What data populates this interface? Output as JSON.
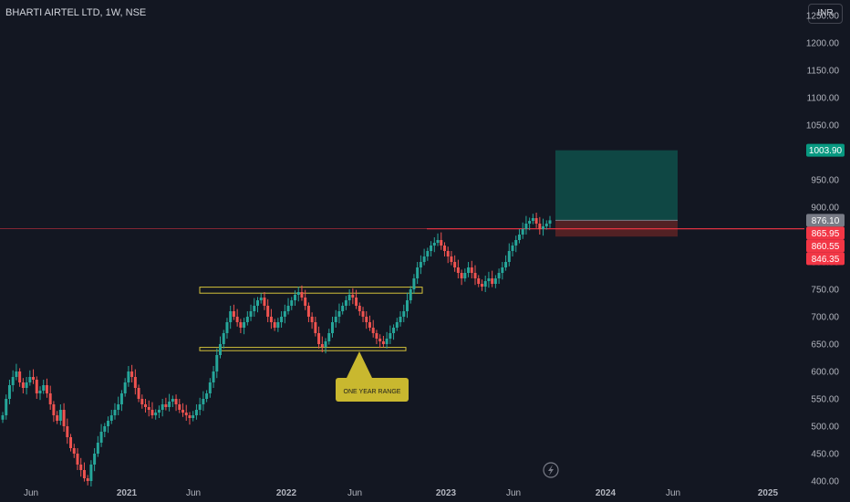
{
  "header": {
    "title": "BHARTI AIRTEL LTD, 1W, NSE",
    "currency": "INR"
  },
  "colors": {
    "background": "#131722",
    "up": "#26a69a",
    "down": "#ef5350",
    "target_zone": "#0f4a47",
    "stop_zone": "#5a2225",
    "range_box": "#d4c23a",
    "line": "#f23645"
  },
  "chart_data": {
    "type": "candlestick",
    "x_ticks": [
      "Jun",
      "2021",
      "Jun",
      "2022",
      "Jun",
      "2023",
      "Jun",
      "2024",
      "Jun",
      "2025"
    ],
    "y_ticks": [
      400,
      450,
      500,
      550,
      600,
      650,
      700,
      750,
      800,
      850,
      900,
      950,
      1000,
      1050,
      1100,
      1150,
      1200,
      1250
    ],
    "ylim": [
      385,
      1265
    ],
    "price_labels": [
      "1003.90",
      "876.10",
      "865.95",
      "860.55",
      "846.35"
    ],
    "annotation": "ONE YEAR RANGE",
    "range_levels": {
      "top_band": [
        743,
        754
      ],
      "bottom_band": [
        638,
        644
      ]
    },
    "horizontal_line": 860.55,
    "position": {
      "entry": 876.1,
      "target": 1003.9,
      "stop": 846.35
    },
    "closes": [
      520,
      550,
      575,
      590,
      600,
      580,
      570,
      580,
      590,
      585,
      560,
      565,
      575,
      560,
      540,
      520,
      510,
      530,
      500,
      480,
      460,
      450,
      430,
      420,
      405,
      400,
      430,
      450,
      470,
      490,
      500,
      510,
      520,
      530,
      540,
      560,
      580,
      600,
      590,
      570,
      550,
      540,
      535,
      530,
      520,
      525,
      530,
      540,
      535,
      545,
      550,
      540,
      530,
      525,
      520,
      515,
      520,
      530,
      540,
      550,
      560,
      580,
      600,
      630,
      650,
      670,
      690,
      710,
      700,
      690,
      680,
      690,
      700,
      710,
      720,
      730,
      735,
      720,
      700,
      690,
      680,
      690,
      700,
      710,
      720,
      730,
      740,
      745,
      735,
      720,
      700,
      690,
      670,
      650,
      645,
      655,
      670,
      690,
      700,
      710,
      720,
      730,
      740,
      735,
      720,
      710,
      700,
      690,
      680,
      670,
      660,
      655,
      650,
      660,
      670,
      680,
      690,
      700,
      710,
      730,
      750,
      770,
      790,
      800,
      810,
      820,
      830,
      835,
      840,
      830,
      820,
      810,
      800,
      790,
      780,
      770,
      780,
      790,
      780,
      770,
      760,
      755,
      765,
      770,
      760,
      770,
      780,
      790,
      800,
      820,
      830,
      840,
      850,
      860,
      870,
      875,
      880,
      870,
      860,
      865,
      870,
      876
    ]
  }
}
